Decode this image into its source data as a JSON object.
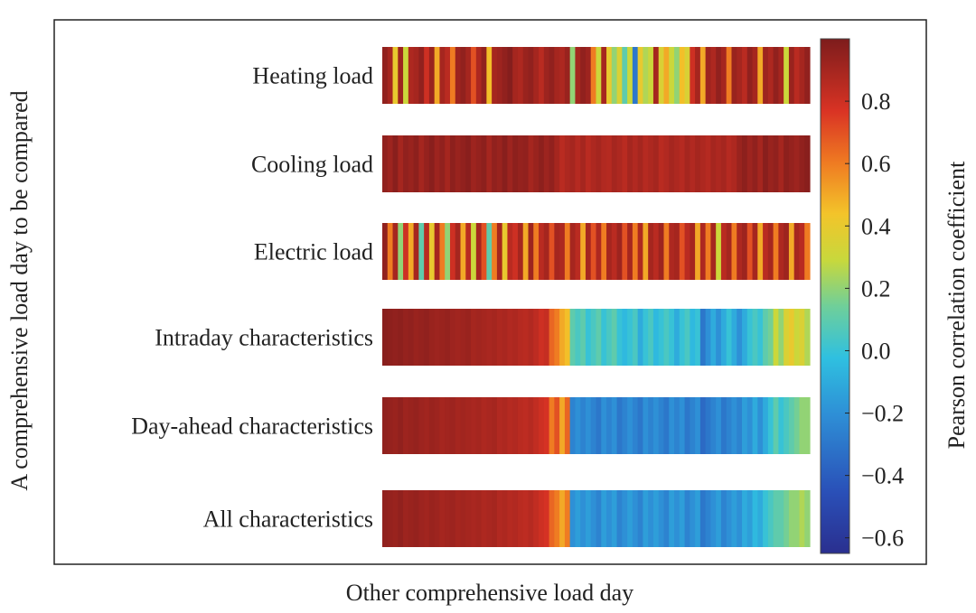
{
  "chart_data": {
    "type": "heatmap",
    "title": "",
    "xlabel": "Other comprehensive load day",
    "ylabel": "A comprehensive load day to be compared",
    "colorbar": {
      "label": "Pearson correlation coefficient",
      "range": [
        -0.65,
        1.0
      ],
      "ticks": [
        "0.8",
        "0.6",
        "0.4",
        "0.2",
        "0.0",
        "−0.2",
        "−0.4",
        "−0.6"
      ],
      "tick_values": [
        0.8,
        0.6,
        0.4,
        0.2,
        0.0,
        -0.2,
        -0.4,
        -0.6
      ],
      "colormap": "jet"
    },
    "grid": false,
    "rows": [
      {
        "label": "Heating load",
        "values": [
          0.95,
          0.9,
          0.4,
          0.92,
          0.3,
          0.88,
          0.9,
          0.95,
          0.8,
          0.93,
          0.5,
          0.9,
          0.85,
          0.6,
          0.92,
          0.95,
          0.9,
          0.7,
          0.88,
          0.95,
          0.45,
          0.9,
          0.92,
          0.95,
          0.98,
          0.9,
          0.88,
          0.93,
          0.95,
          0.9,
          0.85,
          0.92,
          0.95,
          0.9,
          0.88,
          0.93,
          0.2,
          0.9,
          0.95,
          0.92,
          0.6,
          0.3,
          0.9,
          0.4,
          0.2,
          0.35,
          0.1,
          0.3,
          -0.3,
          0.4,
          0.25,
          0.3,
          0.9,
          0.35,
          0.5,
          0.3,
          0.2,
          0.45,
          0.35,
          0.8,
          0.9,
          0.5,
          0.92,
          0.88,
          0.95,
          0.9,
          0.6,
          0.93,
          0.9,
          0.85,
          0.95,
          0.9,
          0.5,
          0.92,
          0.88,
          0.95,
          0.9,
          0.3,
          0.93,
          0.85,
          0.9,
          0.95
        ]
      },
      {
        "label": "Cooling load",
        "values": [
          0.95,
          0.92,
          0.97,
          0.9,
          0.95,
          0.93,
          0.96,
          0.9,
          0.94,
          0.97,
          0.92,
          0.95,
          0.9,
          0.96,
          0.93,
          0.95,
          0.97,
          0.92,
          0.94,
          0.96,
          0.9,
          0.95,
          0.93,
          0.97,
          0.92,
          0.96,
          0.94,
          0.95,
          0.9,
          0.93,
          0.96,
          0.92,
          0.95,
          0.9,
          0.85,
          0.88,
          0.9,
          0.86,
          0.9,
          0.85,
          0.88,
          0.9,
          0.87,
          0.86,
          0.9,
          0.88,
          0.85,
          0.9,
          0.87,
          0.9,
          0.86,
          0.88,
          0.9,
          0.85,
          0.87,
          0.9,
          0.88,
          0.86,
          0.9,
          0.87,
          0.9,
          0.88,
          0.86,
          0.9,
          0.88,
          0.9,
          0.86,
          0.88,
          0.93,
          0.96,
          0.92,
          0.95,
          0.9,
          0.97,
          0.93,
          0.95,
          0.9,
          0.96,
          0.94,
          0.92,
          0.95,
          0.97
        ]
      },
      {
        "label": "Electric load",
        "values": [
          0.95,
          0.6,
          0.9,
          0.2,
          0.8,
          0.5,
          0.9,
          0.1,
          0.85,
          0.4,
          0.9,
          0.6,
          0.2,
          0.8,
          0.9,
          0.5,
          0.85,
          0.3,
          0.9,
          0.7,
          0.1,
          0.6,
          0.9,
          0.4,
          0.85,
          0.8,
          0.9,
          0.5,
          0.92,
          0.6,
          0.85,
          0.9,
          0.7,
          0.9,
          0.88,
          0.6,
          0.9,
          0.85,
          0.5,
          0.9,
          0.7,
          0.88,
          0.6,
          0.9,
          0.85,
          0.92,
          0.7,
          0.9,
          0.6,
          0.88,
          0.5,
          0.9,
          0.85,
          0.92,
          0.6,
          0.88,
          0.9,
          0.7,
          0.85,
          0.9,
          0.5,
          0.88,
          0.6,
          0.9,
          0.3,
          0.85,
          0.9,
          0.6,
          0.88,
          0.92,
          0.7,
          0.9,
          0.5,
          0.85,
          0.9,
          0.6,
          0.88,
          0.92,
          0.5,
          0.9,
          0.85,
          0.6
        ]
      },
      {
        "label": "Intraday characteristics",
        "values": [
          0.97,
          0.96,
          0.95,
          0.96,
          0.94,
          0.95,
          0.93,
          0.94,
          0.95,
          0.93,
          0.92,
          0.93,
          0.94,
          0.92,
          0.91,
          0.92,
          0.93,
          0.9,
          0.91,
          0.9,
          0.89,
          0.9,
          0.88,
          0.89,
          0.87,
          0.88,
          0.86,
          0.85,
          0.87,
          0.84,
          0.8,
          0.82,
          0.65,
          0.6,
          0.5,
          0.45,
          0.1,
          0.05,
          0.1,
          0.0,
          0.05,
          0.1,
          0.0,
          0.05,
          0.1,
          0.0,
          -0.05,
          0.0,
          0.05,
          -0.1,
          0.0,
          0.05,
          -0.05,
          0.0,
          0.05,
          0.0,
          -0.1,
          0.0,
          0.05,
          -0.05,
          0.0,
          -0.3,
          -0.2,
          -0.1,
          -0.2,
          -0.1,
          0.0,
          -0.1,
          -0.2,
          -0.1,
          0.0,
          0.05,
          0.0,
          0.1,
          0.15,
          0.3,
          0.2,
          0.35,
          0.4,
          0.3,
          0.35,
          0.25
        ]
      },
      {
        "label": "Day-ahead characteristics",
        "values": [
          0.95,
          0.94,
          0.93,
          0.95,
          0.92,
          0.93,
          0.94,
          0.92,
          0.91,
          0.93,
          0.92,
          0.9,
          0.91,
          0.92,
          0.9,
          0.91,
          0.9,
          0.89,
          0.9,
          0.88,
          0.89,
          0.9,
          0.87,
          0.88,
          0.86,
          0.87,
          0.85,
          0.84,
          0.86,
          0.83,
          0.8,
          0.78,
          0.6,
          0.7,
          0.5,
          0.65,
          -0.25,
          -0.2,
          -0.25,
          -0.2,
          -0.25,
          -0.3,
          -0.2,
          -0.25,
          -0.2,
          -0.3,
          -0.25,
          -0.2,
          -0.25,
          -0.3,
          -0.2,
          -0.25,
          -0.2,
          -0.25,
          -0.3,
          -0.2,
          -0.25,
          -0.2,
          -0.3,
          -0.25,
          -0.2,
          -0.35,
          -0.3,
          -0.25,
          -0.2,
          -0.3,
          -0.25,
          -0.2,
          -0.25,
          -0.15,
          -0.2,
          -0.1,
          -0.2,
          -0.1,
          0.0,
          0.1,
          0.0,
          0.05,
          0.1,
          0.15,
          0.2,
          0.2
        ]
      },
      {
        "label": "All characteristics",
        "values": [
          0.95,
          0.94,
          0.93,
          0.95,
          0.92,
          0.93,
          0.94,
          0.92,
          0.91,
          0.93,
          0.92,
          0.9,
          0.91,
          0.92,
          0.9,
          0.91,
          0.9,
          0.89,
          0.9,
          0.88,
          0.89,
          0.9,
          0.87,
          0.88,
          0.86,
          0.87,
          0.85,
          0.84,
          0.86,
          0.83,
          0.8,
          0.78,
          0.65,
          0.6,
          0.5,
          0.6,
          -0.2,
          -0.15,
          -0.2,
          -0.15,
          -0.2,
          -0.25,
          -0.15,
          -0.2,
          -0.15,
          -0.25,
          -0.2,
          -0.15,
          -0.2,
          -0.25,
          -0.15,
          -0.2,
          -0.15,
          -0.2,
          -0.25,
          -0.15,
          -0.2,
          -0.15,
          -0.25,
          -0.2,
          -0.15,
          -0.3,
          -0.25,
          -0.2,
          -0.15,
          -0.25,
          -0.2,
          -0.15,
          -0.2,
          -0.1,
          -0.15,
          -0.05,
          -0.1,
          0.0,
          0.05,
          0.1,
          0.1,
          0.15,
          0.2,
          0.2,
          0.25,
          0.2
        ]
      }
    ]
  }
}
